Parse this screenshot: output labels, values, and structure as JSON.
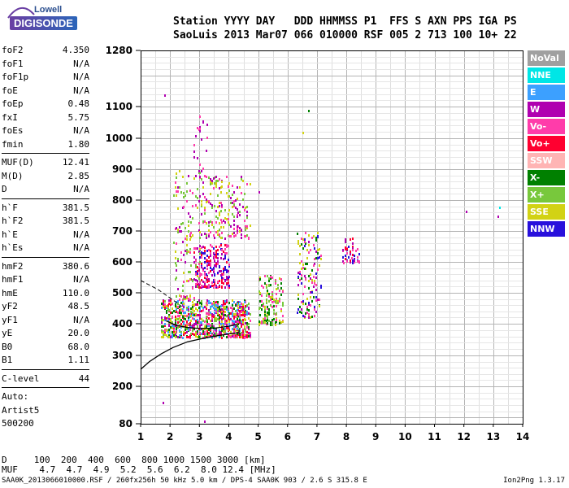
{
  "logo": {
    "top": "Lowell",
    "main": "DIGISONDE"
  },
  "header": {
    "labels": "Station YYYY DAY   DDD HHMMSS P1  FFS S AXN PPS IGA PS",
    "values": "SaoLuis 2013 Mar07 066 010000 RSF 005 2 713 100 10+ 22"
  },
  "params": [
    {
      "label": "foF2",
      "value": "4.350"
    },
    {
      "label": "foF1",
      "value": "N/A"
    },
    {
      "label": "foF1p",
      "value": "N/A"
    },
    {
      "label": "foE",
      "value": "N/A"
    },
    {
      "label": "foEp",
      "value": "0.48"
    },
    {
      "label": "fxI",
      "value": "5.75"
    },
    {
      "label": "foEs",
      "value": "N/A"
    },
    {
      "label": "fmin",
      "value": "1.80"
    },
    {
      "label": "MUF(D)",
      "value": "12.41"
    },
    {
      "label": "M(D)",
      "value": "2.85"
    },
    {
      "label": "D",
      "value": "N/A"
    },
    {
      "label": "h`F",
      "value": "381.5"
    },
    {
      "label": "h`F2",
      "value": "381.5"
    },
    {
      "label": "h`E",
      "value": "N/A"
    },
    {
      "label": "h`Es",
      "value": "N/A"
    },
    {
      "label": "hmF2",
      "value": "380.6"
    },
    {
      "label": "hmF1",
      "value": "N/A"
    },
    {
      "label": "hmE",
      "value": "110.0"
    },
    {
      "label": "yF2",
      "value": "48.5"
    },
    {
      "label": "yF1",
      "value": "N/A"
    },
    {
      "label": "yE",
      "value": "20.0"
    },
    {
      "label": "B0",
      "value": "68.0"
    },
    {
      "label": "B1",
      "value": "1.11"
    },
    {
      "label": "C-level",
      "value": "44"
    }
  ],
  "autoscale": [
    "Auto:",
    "Artist5",
    "500200"
  ],
  "legend": [
    {
      "label": "NoVal",
      "color": "#a0a0a0"
    },
    {
      "label": "NNE",
      "color": "#00e6e6"
    },
    {
      "label": "E",
      "color": "#3ca0ff"
    },
    {
      "label": "W",
      "color": "#b000b0"
    },
    {
      "label": "Vo-",
      "color": "#ff3caa"
    },
    {
      "label": "Vo+",
      "color": "#ff0030"
    },
    {
      "label": "SSW",
      "color": "#ffb4b4"
    },
    {
      "label": "X-",
      "color": "#008000"
    },
    {
      "label": "X+",
      "color": "#78c83c"
    },
    {
      "label": "SSE",
      "color": "#d2d214"
    },
    {
      "label": "NNW",
      "color": "#2810dc"
    }
  ],
  "footer": {
    "row_d": "D     100  200  400  600  800 1000 1500 3000 [km]",
    "row_muf": "MUF    4.7  4.7  4.9  5.2  5.6  6.2  8.0 12.4 [MHz]",
    "file": "SAA0K_2013066010000.RSF / 260fx256h 50 kHz 5.0 km / DPS-4 SAA0K 903 / 2.6 S 315.8 E",
    "version": "Ion2Png 1.3.17"
  },
  "chart_data": {
    "type": "scatter",
    "title": "",
    "xlabel": "",
    "ylabel": "",
    "xlim": [
      1,
      14
    ],
    "ylim": [
      80,
      1280
    ],
    "x_ticks": [
      1,
      2,
      3,
      4,
      5,
      6,
      7,
      8,
      9,
      10,
      11,
      12,
      13,
      14
    ],
    "y_ticks": [
      80,
      200,
      300,
      400,
      500,
      600,
      700,
      800,
      900,
      1000,
      1100,
      1280
    ],
    "grid": true,
    "legend_position": "right",
    "profile_curve": {
      "name": "electron density profile",
      "x": [
        1.0,
        1.3,
        1.7,
        2.1,
        2.6,
        3.1,
        3.6,
        4.0,
        4.35,
        4.35
      ],
      "y": [
        255,
        280,
        305,
        325,
        343,
        353,
        362,
        368,
        372,
        382
      ]
    },
    "trace_curve": {
      "name": "scaled trace",
      "x": [
        1.85,
        2.2,
        2.6,
        3.0,
        3.5,
        4.0,
        4.35
      ],
      "y": [
        410,
        395,
        388,
        385,
        386,
        392,
        400
      ]
    },
    "dashed_line": {
      "x": [
        1.0,
        1.6,
        2.2,
        2.4
      ],
      "y": [
        540,
        510,
        470,
        455
      ]
    },
    "clusters": [
      {
        "x_range": [
          1.7,
          4.7
        ],
        "y_range": [
          360,
          480
        ],
        "count": 900,
        "mix": [
          "Vo-",
          "W",
          "X-",
          "X+",
          "SSE",
          "Vo+",
          "E"
        ]
      },
      {
        "x_range": [
          2.8,
          4.0
        ],
        "y_range": [
          520,
          660
        ],
        "count": 260,
        "mix": [
          "W",
          "Vo-",
          "NNW",
          "Vo+"
        ]
      },
      {
        "x_range": [
          3.0,
          4.7
        ],
        "y_range": [
          680,
          880
        ],
        "count": 200,
        "mix": [
          "SSE",
          "X+",
          "W",
          "Vo-"
        ]
      },
      {
        "x_range": [
          2.1,
          3.0
        ],
        "y_range": [
          480,
          900
        ],
        "count": 140,
        "mix": [
          "SSE",
          "W",
          "X+",
          "Vo-"
        ]
      },
      {
        "x_range": [
          5.0,
          5.8
        ],
        "y_range": [
          400,
          560
        ],
        "count": 160,
        "mix": [
          "SSE",
          "X+",
          "X-",
          "Vo-"
        ]
      },
      {
        "x_range": [
          6.3,
          7.1
        ],
        "y_range": [
          420,
          700
        ],
        "count": 140,
        "mix": [
          "W",
          "Vo-",
          "NNW",
          "SSE",
          "X-"
        ]
      },
      {
        "x_range": [
          7.8,
          8.4
        ],
        "y_range": [
          600,
          680
        ],
        "count": 45,
        "mix": [
          "NNW",
          "W",
          "Vo-",
          "Vo+"
        ]
      },
      {
        "x_range": [
          2.8,
          3.3
        ],
        "y_range": [
          880,
          1080
        ],
        "count": 25,
        "mix": [
          "W",
          "Vo-"
        ]
      }
    ],
    "outliers": [
      {
        "x": 1.8,
        "y": 1140,
        "series": "W"
      },
      {
        "x": 1.75,
        "y": 150,
        "series": "W"
      },
      {
        "x": 6.7,
        "y": 1090,
        "series": "X-"
      },
      {
        "x": 6.5,
        "y": 1020,
        "series": "SSE"
      },
      {
        "x": 12.05,
        "y": 765,
        "series": "W"
      },
      {
        "x": 13.15,
        "y": 750,
        "series": "W"
      },
      {
        "x": 13.2,
        "y": 780,
        "series": "NNE"
      },
      {
        "x": 5.0,
        "y": 830,
        "series": "W"
      },
      {
        "x": 3.15,
        "y": 90,
        "series": "W"
      }
    ]
  }
}
